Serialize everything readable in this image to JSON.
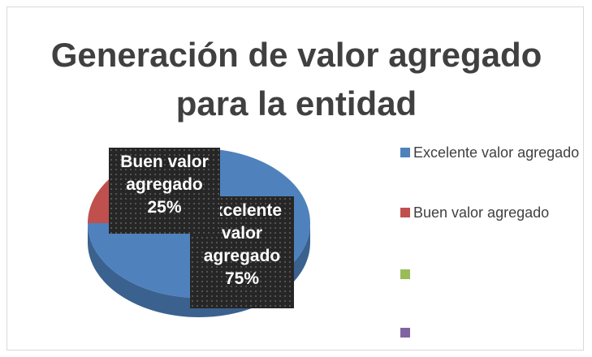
{
  "chart_data": {
    "type": "pie",
    "three_d": true,
    "title": "Generación de valor agregado para la entidad",
    "categories": [
      "Excelente valor agregado",
      "Buen valor agregado",
      null,
      null
    ],
    "values": [
      75,
      25,
      0,
      0
    ],
    "value_labels": [
      "75%",
      "25%",
      null,
      null
    ],
    "colors": [
      "#4f81bd",
      "#c0504d",
      "#9bbb59",
      "#8064a2"
    ],
    "legend": "right"
  }
}
